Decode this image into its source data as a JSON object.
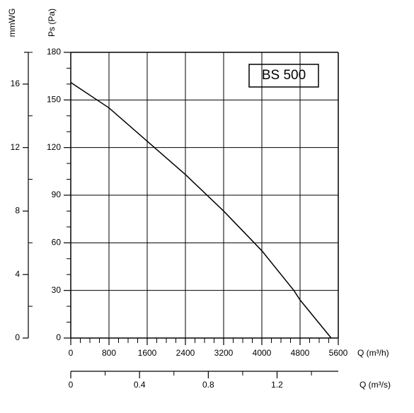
{
  "chart_data": {
    "type": "line",
    "legend_box": "BS 500",
    "xlabel": "Q (m³/h)",
    "ylabel": "Ps (Pa)",
    "y2label": "mmWG",
    "x2label": "Q (m³/s)",
    "x": [
      0,
      800,
      1600,
      2400,
      3200,
      4000,
      4670,
      4800,
      5452
    ],
    "series": [
      {
        "name": "BS 500",
        "color": "#000000",
        "values": [
          161,
          145,
          124,
          103,
          80,
          55,
          30,
          24,
          0
        ]
      }
    ],
    "xlim": [
      0,
      5600
    ],
    "xticks": [
      0,
      800,
      1600,
      2400,
      3200,
      4000,
      4800,
      5600
    ],
    "ylim": [
      0,
      180
    ],
    "yticks": [
      0,
      30,
      60,
      90,
      120,
      150,
      180
    ],
    "y2lim": [
      0,
      18
    ],
    "y2ticks": [
      0,
      4,
      8,
      12,
      16
    ],
    "x2lim": [
      0,
      1.556
    ],
    "x2ticks": [
      0,
      0.4,
      0.8,
      1.2
    ],
    "grid": true
  }
}
